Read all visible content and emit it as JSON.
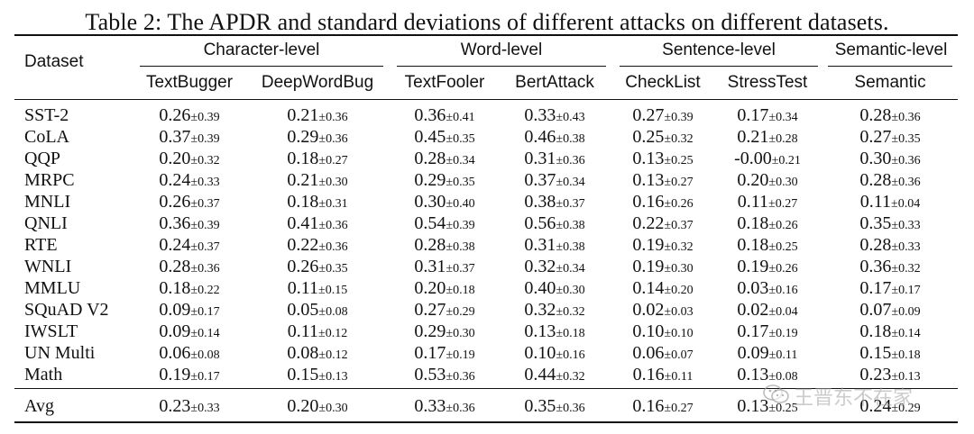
{
  "caption": "Table 2: The APDR and standard deviations of different attacks on different datasets.",
  "header": {
    "dataset_label": "Dataset",
    "groups": [
      "Character-level",
      "Word-level",
      "Sentence-level",
      "Semantic-level"
    ],
    "columns": [
      "TextBugger",
      "DeepWordBug",
      "TextFooler",
      "BertAttack",
      "CheckList",
      "StressTest",
      "Semantic"
    ]
  },
  "rows": [
    {
      "dataset": "SST-2",
      "cells": [
        {
          "v": "0.26",
          "sd": "±0.39"
        },
        {
          "v": "0.21",
          "sd": "±0.36"
        },
        {
          "v": "0.36",
          "sd": "±0.41"
        },
        {
          "v": "0.33",
          "sd": "±0.43"
        },
        {
          "v": "0.27",
          "sd": "±0.39"
        },
        {
          "v": "0.17",
          "sd": "±0.34"
        },
        {
          "v": "0.28",
          "sd": "±0.36"
        }
      ]
    },
    {
      "dataset": "CoLA",
      "cells": [
        {
          "v": "0.37",
          "sd": "±0.39"
        },
        {
          "v": "0.29",
          "sd": "±0.36"
        },
        {
          "v": "0.45",
          "sd": "±0.35"
        },
        {
          "v": "0.46",
          "sd": "±0.38"
        },
        {
          "v": "0.25",
          "sd": "±0.32"
        },
        {
          "v": "0.21",
          "sd": "±0.28"
        },
        {
          "v": "0.27",
          "sd": "±0.35"
        }
      ]
    },
    {
      "dataset": "QQP",
      "cells": [
        {
          "v": "0.20",
          "sd": "±0.32"
        },
        {
          "v": "0.18",
          "sd": "±0.27"
        },
        {
          "v": "0.28",
          "sd": "±0.34"
        },
        {
          "v": "0.31",
          "sd": "±0.36"
        },
        {
          "v": "0.13",
          "sd": "±0.25"
        },
        {
          "v": "-0.00",
          "sd": "±0.21"
        },
        {
          "v": "0.30",
          "sd": "±0.36"
        }
      ]
    },
    {
      "dataset": "MRPC",
      "cells": [
        {
          "v": "0.24",
          "sd": "±0.33"
        },
        {
          "v": "0.21",
          "sd": "±0.30"
        },
        {
          "v": "0.29",
          "sd": "±0.35"
        },
        {
          "v": "0.37",
          "sd": "±0.34"
        },
        {
          "v": "0.13",
          "sd": "±0.27"
        },
        {
          "v": "0.20",
          "sd": "±0.30"
        },
        {
          "v": "0.28",
          "sd": "±0.36"
        }
      ]
    },
    {
      "dataset": "MNLI",
      "cells": [
        {
          "v": "0.26",
          "sd": "±0.37"
        },
        {
          "v": "0.18",
          "sd": "±0.31"
        },
        {
          "v": "0.30",
          "sd": "±0.40"
        },
        {
          "v": "0.38",
          "sd": "±0.37"
        },
        {
          "v": "0.16",
          "sd": "±0.26"
        },
        {
          "v": "0.11",
          "sd": "±0.27"
        },
        {
          "v": "0.11",
          "sd": "±0.04"
        }
      ]
    },
    {
      "dataset": "QNLI",
      "cells": [
        {
          "v": "0.36",
          "sd": "±0.39"
        },
        {
          "v": "0.41",
          "sd": "±0.36"
        },
        {
          "v": "0.54",
          "sd": "±0.39"
        },
        {
          "v": "0.56",
          "sd": "±0.38"
        },
        {
          "v": "0.22",
          "sd": "±0.37"
        },
        {
          "v": "0.18",
          "sd": "±0.26"
        },
        {
          "v": "0.35",
          "sd": "±0.33"
        }
      ]
    },
    {
      "dataset": "RTE",
      "cells": [
        {
          "v": "0.24",
          "sd": "±0.37"
        },
        {
          "v": "0.22",
          "sd": "±0.36"
        },
        {
          "v": "0.28",
          "sd": "±0.38"
        },
        {
          "v": "0.31",
          "sd": "±0.38"
        },
        {
          "v": "0.19",
          "sd": "±0.32"
        },
        {
          "v": "0.18",
          "sd": "±0.25"
        },
        {
          "v": "0.28",
          "sd": "±0.33"
        }
      ]
    },
    {
      "dataset": "WNLI",
      "cells": [
        {
          "v": "0.28",
          "sd": "±0.36"
        },
        {
          "v": "0.26",
          "sd": "±0.35"
        },
        {
          "v": "0.31",
          "sd": "±0.37"
        },
        {
          "v": "0.32",
          "sd": "±0.34"
        },
        {
          "v": "0.19",
          "sd": "±0.30"
        },
        {
          "v": "0.19",
          "sd": "±0.26"
        },
        {
          "v": "0.36",
          "sd": "±0.32"
        }
      ]
    },
    {
      "dataset": "MMLU",
      "cells": [
        {
          "v": "0.18",
          "sd": "±0.22"
        },
        {
          "v": "0.11",
          "sd": "±0.15"
        },
        {
          "v": "0.20",
          "sd": "±0.18"
        },
        {
          "v": "0.40",
          "sd": "±0.30"
        },
        {
          "v": "0.14",
          "sd": "±0.20"
        },
        {
          "v": "0.03",
          "sd": "±0.16"
        },
        {
          "v": "0.17",
          "sd": "±0.17"
        }
      ]
    },
    {
      "dataset": "SQuAD V2",
      "cells": [
        {
          "v": "0.09",
          "sd": "±0.17"
        },
        {
          "v": "0.05",
          "sd": "±0.08"
        },
        {
          "v": "0.27",
          "sd": "±0.29"
        },
        {
          "v": "0.32",
          "sd": "±0.32"
        },
        {
          "v": "0.02",
          "sd": "±0.03"
        },
        {
          "v": "0.02",
          "sd": "±0.04"
        },
        {
          "v": "0.07",
          "sd": "±0.09"
        }
      ]
    },
    {
      "dataset": "IWSLT",
      "cells": [
        {
          "v": "0.09",
          "sd": "±0.14"
        },
        {
          "v": "0.11",
          "sd": "±0.12"
        },
        {
          "v": "0.29",
          "sd": "±0.30"
        },
        {
          "v": "0.13",
          "sd": "±0.18"
        },
        {
          "v": "0.10",
          "sd": "±0.10"
        },
        {
          "v": "0.17",
          "sd": "±0.19"
        },
        {
          "v": "0.18",
          "sd": "±0.14"
        }
      ]
    },
    {
      "dataset": "UN Multi",
      "cells": [
        {
          "v": "0.06",
          "sd": "±0.08"
        },
        {
          "v": "0.08",
          "sd": "±0.12"
        },
        {
          "v": "0.17",
          "sd": "±0.19"
        },
        {
          "v": "0.10",
          "sd": "±0.16"
        },
        {
          "v": "0.06",
          "sd": "±0.07"
        },
        {
          "v": "0.09",
          "sd": "±0.11"
        },
        {
          "v": "0.15",
          "sd": "±0.18"
        }
      ]
    },
    {
      "dataset": "Math",
      "cells": [
        {
          "v": "0.19",
          "sd": "±0.17"
        },
        {
          "v": "0.15",
          "sd": "±0.13"
        },
        {
          "v": "0.53",
          "sd": "±0.36"
        },
        {
          "v": "0.44",
          "sd": "±0.32"
        },
        {
          "v": "0.16",
          "sd": "±0.11"
        },
        {
          "v": "0.13",
          "sd": "±0.08"
        },
        {
          "v": "0.23",
          "sd": "±0.13"
        }
      ]
    }
  ],
  "avg_row": {
    "dataset": "Avg",
    "cells": [
      {
        "v": "0.23",
        "sd": "±0.33"
      },
      {
        "v": "0.20",
        "sd": "±0.30"
      },
      {
        "v": "0.33",
        "sd": "±0.36"
      },
      {
        "v": "0.35",
        "sd": "±0.36"
      },
      {
        "v": "0.16",
        "sd": "±0.27"
      },
      {
        "v": "0.13",
        "sd": "±0.25"
      },
      {
        "v": "0.24",
        "sd": "±0.29"
      }
    ]
  },
  "watermark": {
    "text": "王晋东不在家",
    "icon": "wechat-icon"
  }
}
